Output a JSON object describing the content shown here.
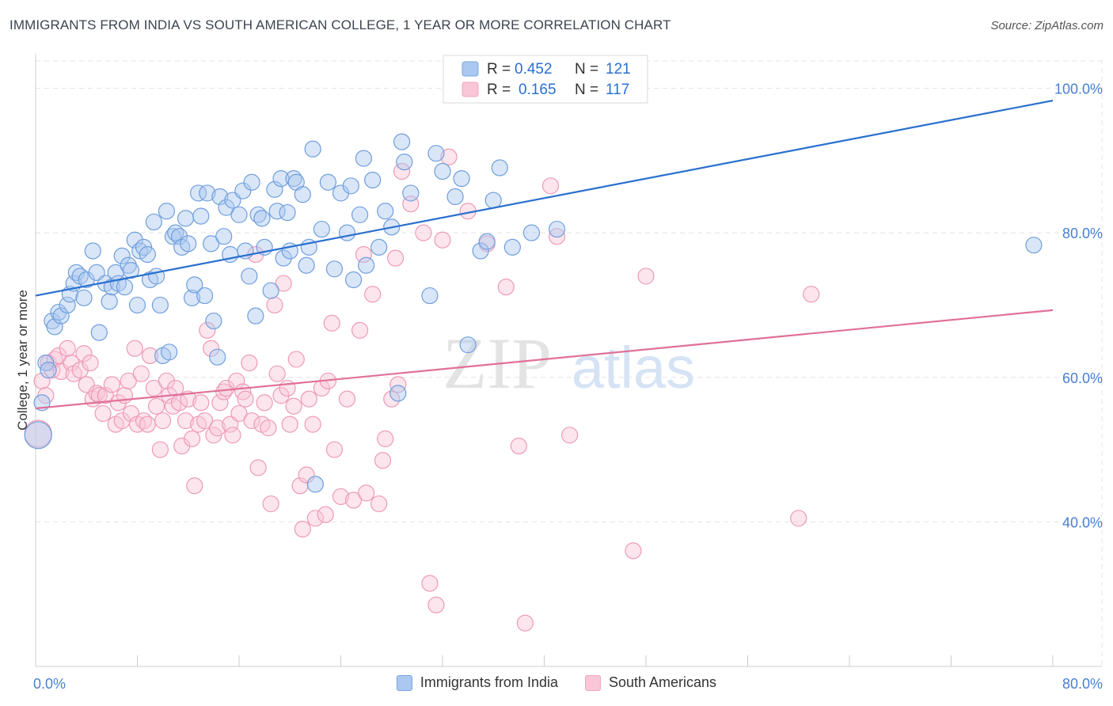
{
  "header": {
    "title": "IMMIGRANTS FROM INDIA VS SOUTH AMERICAN COLLEGE, 1 YEAR OR MORE CORRELATION CHART",
    "source": "Source: ZipAtlas.com"
  },
  "watermark": {
    "zip": "ZIP",
    "atlas": "atlas"
  },
  "chart_data": {
    "type": "scatter",
    "title": "IMMIGRANTS FROM INDIA VS SOUTH AMERICAN COLLEGE, 1 YEAR OR MORE CORRELATION CHART",
    "xlabel": "",
    "ylabel": "College, 1 year or more",
    "xlim": [
      0,
      80
    ],
    "ylim": [
      20,
      104
    ],
    "x_tick_labels": [
      "0.0%",
      "80.0%"
    ],
    "y_ticks": [
      40,
      60,
      80,
      100
    ],
    "y_tick_labels": [
      "40.0%",
      "60.0%",
      "80.0%",
      "100.0%"
    ],
    "grid": true,
    "legend": {
      "position": "top-center",
      "entries": [
        {
          "r_label": "R =",
          "r_value": "0.452",
          "n_label": "N =",
          "n_value": "121"
        },
        {
          "r_label": "R =",
          "r_value": "0.165",
          "n_label": "N =",
          "n_value": "117"
        }
      ]
    },
    "series": [
      {
        "name": "Immigrants from India",
        "color": "#7aa6e0",
        "line_color": "#2a6fcf",
        "trend": {
          "x": [
            0,
            80
          ],
          "y": [
            71.3,
            98.3
          ]
        },
        "points": [
          [
            0.5,
            56.5
          ],
          [
            0.8,
            62
          ],
          [
            1,
            61
          ],
          [
            1.3,
            67.8
          ],
          [
            1.5,
            67
          ],
          [
            1.8,
            69
          ],
          [
            2,
            68.5
          ],
          [
            2.5,
            70
          ],
          [
            2.7,
            71.5
          ],
          [
            3,
            73
          ],
          [
            3.2,
            74.5
          ],
          [
            3.5,
            74
          ],
          [
            3.8,
            71
          ],
          [
            4,
            73.5
          ],
          [
            4.5,
            77.5
          ],
          [
            4.8,
            74.5
          ],
          [
            5,
            66.2
          ],
          [
            5.5,
            73
          ],
          [
            5.8,
            70.5
          ],
          [
            6,
            72.5
          ],
          [
            6.3,
            74.5
          ],
          [
            6.5,
            73
          ],
          [
            6.8,
            76.8
          ],
          [
            7,
            72.5
          ],
          [
            7.3,
            75.5
          ],
          [
            7.5,
            74.8
          ],
          [
            7.8,
            79
          ],
          [
            8,
            70
          ],
          [
            8.2,
            77.5
          ],
          [
            8.5,
            78
          ],
          [
            8.8,
            77
          ],
          [
            9,
            73.5
          ],
          [
            9.3,
            81.5
          ],
          [
            9.5,
            74
          ],
          [
            9.8,
            70
          ],
          [
            10,
            63
          ],
          [
            10.3,
            83
          ],
          [
            10.5,
            63.5
          ],
          [
            10.8,
            79.5
          ],
          [
            11,
            80
          ],
          [
            11.3,
            79.5
          ],
          [
            11.5,
            78
          ],
          [
            11.8,
            82
          ],
          [
            12,
            78.5
          ],
          [
            12.3,
            71
          ],
          [
            12.5,
            72.8
          ],
          [
            12.8,
            85.5
          ],
          [
            13,
            82.3
          ],
          [
            13.3,
            71.3
          ],
          [
            13.5,
            85.5
          ],
          [
            13.8,
            78.5
          ],
          [
            14,
            67.8
          ],
          [
            14.3,
            62.8
          ],
          [
            14.5,
            85
          ],
          [
            14.8,
            79.5
          ],
          [
            15,
            83.5
          ],
          [
            15.3,
            77
          ],
          [
            15.5,
            84.5
          ],
          [
            16,
            82.5
          ],
          [
            16.3,
            85.8
          ],
          [
            16.5,
            77.5
          ],
          [
            16.8,
            74
          ],
          [
            17,
            87
          ],
          [
            17.3,
            68.5
          ],
          [
            17.5,
            82.5
          ],
          [
            17.8,
            82
          ],
          [
            18,
            78
          ],
          [
            18.5,
            72
          ],
          [
            18.8,
            86
          ],
          [
            19,
            83
          ],
          [
            19.3,
            87.5
          ],
          [
            19.5,
            76.5
          ],
          [
            19.8,
            82.8
          ],
          [
            20,
            77.5
          ],
          [
            20.3,
            87.5
          ],
          [
            20.5,
            87
          ],
          [
            21,
            85.3
          ],
          [
            21.3,
            75.5
          ],
          [
            21.5,
            78
          ],
          [
            21.8,
            91.6
          ],
          [
            22,
            45.2
          ],
          [
            22.5,
            80.5
          ],
          [
            23,
            87
          ],
          [
            23.5,
            75
          ],
          [
            24,
            85.5
          ],
          [
            24.5,
            80
          ],
          [
            24.8,
            86.5
          ],
          [
            25,
            73.5
          ],
          [
            25.5,
            82.5
          ],
          [
            25.8,
            90.3
          ],
          [
            26,
            75.5
          ],
          [
            26.5,
            87.3
          ],
          [
            27,
            78
          ],
          [
            27.5,
            83
          ],
          [
            28,
            80.8
          ],
          [
            28.5,
            57.8
          ],
          [
            28.8,
            92.6
          ],
          [
            29,
            89.8
          ],
          [
            29.5,
            85.5
          ],
          [
            31,
            71.3
          ],
          [
            31.5,
            91
          ],
          [
            32,
            88.5
          ],
          [
            33,
            85
          ],
          [
            33.5,
            87.5
          ],
          [
            34,
            64.5
          ],
          [
            35,
            77.5
          ],
          [
            35.5,
            78.8
          ],
          [
            36,
            84.5
          ],
          [
            36.5,
            89
          ],
          [
            37.5,
            78
          ],
          [
            39,
            80
          ],
          [
            41,
            80.5
          ],
          [
            78.5,
            78.3
          ],
          [
            0.2,
            52
          ]
        ],
        "sizes": {
          "last": "large"
        }
      },
      {
        "name": "South Americans",
        "color": "#f2a6bf",
        "line_color": "#e0709a",
        "trend": {
          "x": [
            0,
            80
          ],
          "y": [
            55.7,
            69.3
          ]
        },
        "points": [
          [
            0.5,
            59.5
          ],
          [
            0.8,
            57.5
          ],
          [
            1,
            62
          ],
          [
            1.3,
            61
          ],
          [
            1.5,
            62.5
          ],
          [
            1.8,
            63
          ],
          [
            2,
            60.8
          ],
          [
            2.5,
            64
          ],
          [
            2.8,
            62
          ],
          [
            3,
            60.5
          ],
          [
            3.5,
            61
          ],
          [
            3.8,
            63.3
          ],
          [
            4,
            59
          ],
          [
            4.3,
            62
          ],
          [
            4.5,
            57
          ],
          [
            4.8,
            57.8
          ],
          [
            5,
            57.5
          ],
          [
            5.3,
            55
          ],
          [
            5.5,
            57.5
          ],
          [
            6,
            59
          ],
          [
            6.3,
            53.5
          ],
          [
            6.5,
            56.5
          ],
          [
            6.8,
            54
          ],
          [
            7,
            57.5
          ],
          [
            7.3,
            59.5
          ],
          [
            7.5,
            55
          ],
          [
            7.8,
            64
          ],
          [
            8,
            53.5
          ],
          [
            8.3,
            60.5
          ],
          [
            8.5,
            54
          ],
          [
            8.8,
            53.5
          ],
          [
            9,
            63
          ],
          [
            9.3,
            58.5
          ],
          [
            9.5,
            56
          ],
          [
            9.8,
            50
          ],
          [
            10,
            54
          ],
          [
            10.3,
            59.5
          ],
          [
            10.5,
            57.5
          ],
          [
            10.8,
            56
          ],
          [
            11,
            58.5
          ],
          [
            11.3,
            56.5
          ],
          [
            11.5,
            50.5
          ],
          [
            11.8,
            54
          ],
          [
            12,
            57
          ],
          [
            12.3,
            51.5
          ],
          [
            12.5,
            45
          ],
          [
            12.8,
            53.5
          ],
          [
            13,
            56.5
          ],
          [
            13.3,
            54
          ],
          [
            13.5,
            66.5
          ],
          [
            13.8,
            64
          ],
          [
            14,
            52
          ],
          [
            14.3,
            53
          ],
          [
            14.5,
            56.5
          ],
          [
            14.8,
            58
          ],
          [
            15,
            58.5
          ],
          [
            15.3,
            53.5
          ],
          [
            15.5,
            52
          ],
          [
            15.8,
            59.5
          ],
          [
            16,
            55
          ],
          [
            16.3,
            58
          ],
          [
            16.5,
            57
          ],
          [
            16.8,
            62
          ],
          [
            17,
            54
          ],
          [
            17.3,
            77
          ],
          [
            17.5,
            47.5
          ],
          [
            17.8,
            53.5
          ],
          [
            18,
            56.5
          ],
          [
            18.3,
            53
          ],
          [
            18.5,
            42.5
          ],
          [
            18.8,
            70
          ],
          [
            19,
            60.5
          ],
          [
            19.3,
            57.5
          ],
          [
            19.5,
            73
          ],
          [
            19.8,
            58.5
          ],
          [
            20,
            53.5
          ],
          [
            20.3,
            56
          ],
          [
            20.5,
            62.5
          ],
          [
            20.8,
            45
          ],
          [
            21,
            39
          ],
          [
            21.3,
            46.5
          ],
          [
            21.5,
            57
          ],
          [
            21.8,
            53.5
          ],
          [
            22,
            40.5
          ],
          [
            22.5,
            58.5
          ],
          [
            22.8,
            41
          ],
          [
            23,
            59.5
          ],
          [
            23.3,
            67.5
          ],
          [
            23.5,
            50
          ],
          [
            24,
            43.5
          ],
          [
            24.5,
            57
          ],
          [
            25,
            43
          ],
          [
            25.5,
            66.5
          ],
          [
            25.8,
            77
          ],
          [
            26,
            44
          ],
          [
            26.5,
            71.5
          ],
          [
            27,
            42.5
          ],
          [
            27.3,
            48.5
          ],
          [
            27.5,
            51.5
          ],
          [
            28,
            57
          ],
          [
            28.3,
            76.5
          ],
          [
            28.5,
            59
          ],
          [
            28.8,
            88.5
          ],
          [
            29.5,
            84
          ],
          [
            30.5,
            80
          ],
          [
            31,
            31.5
          ],
          [
            31.5,
            28.5
          ],
          [
            32,
            79
          ],
          [
            32.5,
            90.5
          ],
          [
            34,
            83
          ],
          [
            35.5,
            78.5
          ],
          [
            37,
            72.5
          ],
          [
            38,
            50.5
          ],
          [
            38.5,
            26
          ],
          [
            40.5,
            86.5
          ],
          [
            41,
            79.5
          ],
          [
            42,
            52
          ],
          [
            47,
            36
          ],
          [
            48,
            74
          ],
          [
            60,
            40.5
          ],
          [
            61,
            71.5
          ],
          [
            0.2,
            52.2
          ]
        ],
        "sizes": {
          "last": "large"
        }
      }
    ]
  },
  "bottom_legend": [
    {
      "label": "Immigrants from India",
      "color": "#aac8f0",
      "border": "#7aa6e0"
    },
    {
      "label": "South Americans",
      "color": "#f8c6d6",
      "border": "#f2a6bf"
    }
  ]
}
